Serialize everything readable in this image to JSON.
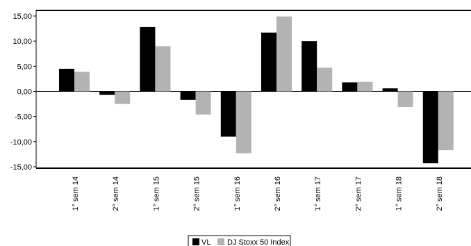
{
  "chart_data": {
    "type": "bar",
    "title": "",
    "xlabel": "",
    "ylabel": "",
    "categories": [
      "1° sem 14",
      "2° sem 14",
      "1° sem 15",
      "2° sem 15",
      "1° sem 16",
      "2° sem 16",
      "1° sem 17",
      "2° sem 17",
      "1° sem 18",
      "2° sem 18"
    ],
    "series": [
      {
        "name": "VL",
        "color": "#000000",
        "values": [
          4.5,
          -0.7,
          12.8,
          -1.7,
          -9.0,
          11.7,
          10.0,
          1.8,
          0.6,
          -14.3
        ]
      },
      {
        "name": "DJ Stoxx 50 Index",
        "color": "#b3b3b3",
        "values": [
          3.9,
          -2.5,
          9.0,
          -4.6,
          -12.3,
          14.9,
          4.7,
          1.9,
          -3.1,
          -11.7
        ]
      }
    ],
    "ylim": [
      -15,
      15
    ],
    "yticks": [
      "15,00",
      "10,00",
      "5,00",
      "0,00",
      "-5,00",
      "-10,00",
      "-15,00"
    ],
    "ytick_values": [
      15,
      10,
      5,
      0,
      -5,
      -10,
      -15
    ],
    "grid": false,
    "legend_position": "bottom-center"
  }
}
